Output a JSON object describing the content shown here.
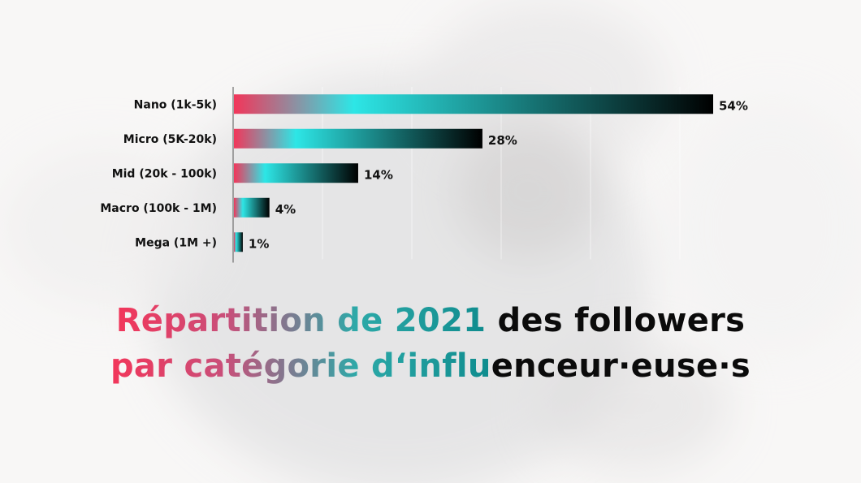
{
  "chart_data": {
    "type": "bar",
    "orientation": "horizontal",
    "categories": [
      "Nano (1k-5k)",
      "Micro (5K-20k)",
      "Mid (20k - 100k)",
      "Macro (100k - 1M)",
      "Mega (1M +)"
    ],
    "values": [
      54,
      28,
      14,
      4,
      1
    ],
    "value_labels": [
      "54%",
      "28%",
      "14%",
      "4%",
      "1%"
    ],
    "xlim": [
      0,
      54
    ],
    "grid": true,
    "title": ""
  },
  "headline": {
    "line1_colored": "Répartition de 2021",
    "line1_plain": " des followers",
    "line2_colored": "par catégorie d‘influ",
    "line2_plain": "enceur·euse·s"
  },
  "colors": {
    "gradient_start": "#f2365a",
    "gradient_mid": "#2de6e6",
    "gradient_end": "#000000"
  }
}
